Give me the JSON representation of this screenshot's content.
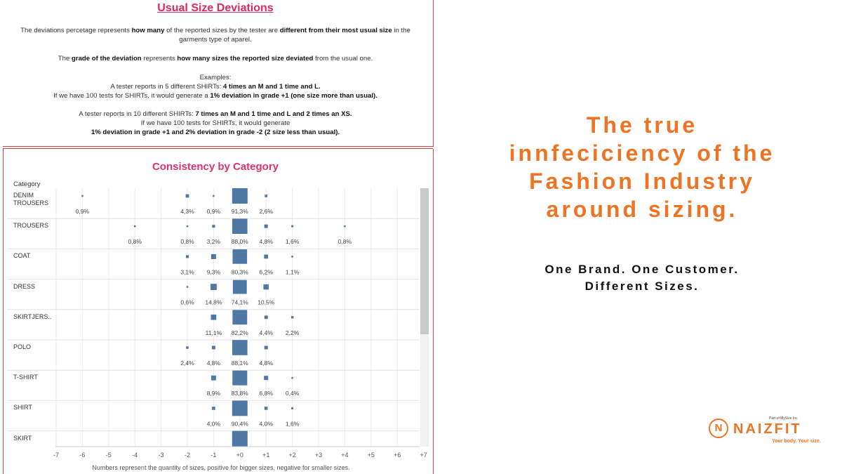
{
  "info": {
    "title": "Usual Size Deviations",
    "p1_a": "The deviations percetage represents ",
    "p1_b": "how many",
    "p1_c": " of the reported sizes by the tester are ",
    "p1_d": "different from their most usual size",
    "p1_e": " in the garments type of aparel.",
    "p2_a": "The ",
    "p2_b": "grade of the deviation",
    "p2_c": " represents ",
    "p2_d": "how many sizes the reported size deviated",
    "p2_e": " from the usual one.",
    "ex_title": "Examples:",
    "ex1_a": "A tester reports in 5 different SHIRTs: ",
    "ex1_b": "4 times an M and 1 time and L.",
    "ex1_c": "If we have 100 tests for SHIRTs, it would generate a ",
    "ex1_d": "1% deviation in grade +1 (one size more than usual).",
    "ex2_a": "A tester reports in 10 different SHIRTs: ",
    "ex2_b": "7 times an M and 1 time and L and 2 times an XS.",
    "ex2_c": "If we have 100 tests for SHIRTs, it would generate",
    "ex2_d": "1% deviation in grade +1 and 2% deviation in grade -2 (2 size less than usual)."
  },
  "chart_data": {
    "type": "scatter",
    "title": "Consistency by Category",
    "category_header": "Category",
    "xlabel": "Numbers represent the quantity of sizes, positive for bigger sizes, negative for smaller sizes.",
    "x_ticks": [
      "-7",
      "-6",
      "-5",
      "-4",
      "-3",
      "-2",
      "-1",
      "+0",
      "+1",
      "+2",
      "+3",
      "+4",
      "+5",
      "+6",
      "+7"
    ],
    "xlim": [
      -7,
      7
    ],
    "marker_color": "#4e79a7",
    "categories": [
      {
        "name": "DENIM TROUSERS",
        "points": [
          {
            "x": -6,
            "label": "0,9%",
            "value": 0.9
          },
          {
            "x": -2,
            "label": "4,3%",
            "value": 4.3
          },
          {
            "x": -1,
            "label": "0,9%",
            "value": 0.9
          },
          {
            "x": 0,
            "label": "91,3%",
            "value": 91.3
          },
          {
            "x": 1,
            "label": "2,6%",
            "value": 2.6
          }
        ]
      },
      {
        "name": "TROUSERS",
        "points": [
          {
            "x": -4,
            "label": "0,8%",
            "value": 0.8
          },
          {
            "x": -2,
            "label": "0,8%",
            "value": 0.8
          },
          {
            "x": -1,
            "label": "3,2%",
            "value": 3.2
          },
          {
            "x": 0,
            "label": "88,0%",
            "value": 88.0
          },
          {
            "x": 1,
            "label": "4,8%",
            "value": 4.8
          },
          {
            "x": 2,
            "label": "1,6%",
            "value": 1.6
          },
          {
            "x": 4,
            "label": "0,8%",
            "value": 0.8
          }
        ]
      },
      {
        "name": "COAT",
        "points": [
          {
            "x": -2,
            "label": "3,1%",
            "value": 3.1
          },
          {
            "x": -1,
            "label": "9,3%",
            "value": 9.3
          },
          {
            "x": 0,
            "label": "80,3%",
            "value": 80.3
          },
          {
            "x": 1,
            "label": "6,2%",
            "value": 6.2
          },
          {
            "x": 2,
            "label": "1,1%",
            "value": 1.1
          }
        ]
      },
      {
        "name": "DRESS",
        "points": [
          {
            "x": -2,
            "label": "0,6%",
            "value": 0.6
          },
          {
            "x": -1,
            "label": "14,8%",
            "value": 14.8
          },
          {
            "x": 0,
            "label": "74,1%",
            "value": 74.1
          },
          {
            "x": 1,
            "label": "10,5%",
            "value": 10.5
          }
        ]
      },
      {
        "name": "SKIRTJERS..",
        "points": [
          {
            "x": -1,
            "label": "11,1%",
            "value": 11.1
          },
          {
            "x": 0,
            "label": "82,2%",
            "value": 82.2
          },
          {
            "x": 1,
            "label": "4,4%",
            "value": 4.4
          },
          {
            "x": 2,
            "label": "2,2%",
            "value": 2.2
          }
        ]
      },
      {
        "name": "POLO",
        "points": [
          {
            "x": -2,
            "label": "2,4%",
            "value": 2.4
          },
          {
            "x": -1,
            "label": "4,8%",
            "value": 4.8
          },
          {
            "x": 0,
            "label": "88,1%",
            "value": 88.1
          },
          {
            "x": 1,
            "label": "4,8%",
            "value": 4.8
          }
        ]
      },
      {
        "name": "T-SHIRT",
        "points": [
          {
            "x": -1,
            "label": "8,9%",
            "value": 8.9
          },
          {
            "x": 0,
            "label": "83,8%",
            "value": 83.8
          },
          {
            "x": 1,
            "label": "6,8%",
            "value": 6.8
          },
          {
            "x": 2,
            "label": "0,4%",
            "value": 0.4
          }
        ]
      },
      {
        "name": "SHIRT",
        "points": [
          {
            "x": -1,
            "label": "4,0%",
            "value": 4.0
          },
          {
            "x": 0,
            "label": "90,4%",
            "value": 90.4
          },
          {
            "x": 1,
            "label": "4,0%",
            "value": 4.0
          },
          {
            "x": 2,
            "label": "1,6%",
            "value": 1.6
          }
        ]
      },
      {
        "name": "SKIRT",
        "points": [
          {
            "x": 0,
            "label": "",
            "value": null
          }
        ]
      }
    ]
  },
  "headline": {
    "line1": "The true",
    "line2": "innfeciciency of the",
    "line3": "Fashion Industry",
    "line4": "around sizing."
  },
  "subheadline": {
    "line1": "One Brand. One Customer.",
    "line2": "Different Sizes."
  },
  "logo": {
    "mark": "N",
    "word": "NAIZFIT",
    "parent": "Part of MySize Inc",
    "tagline": "Your body. Your size."
  },
  "colors": {
    "accent": "#ee7423",
    "title_pink": "#e0316b",
    "border_red": "#d9404a"
  }
}
